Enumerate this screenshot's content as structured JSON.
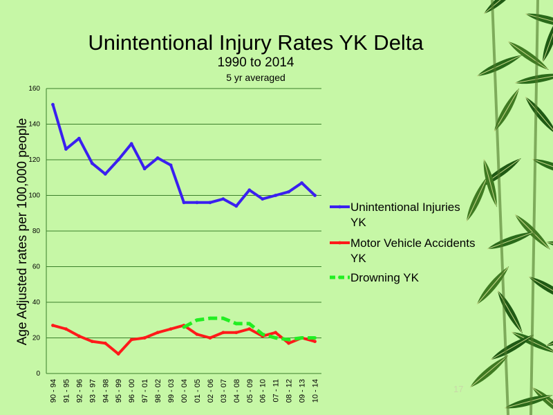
{
  "slide": {
    "title": "Unintentional Injury Rates YK Delta",
    "subtitle": "1990 to 2014",
    "note": "5 yr averaged",
    "page_number": "17",
    "background_color": "#c6f7a6"
  },
  "chart_data": {
    "type": "line",
    "title": "Unintentional Injury Rates YK Delta",
    "xlabel": "",
    "ylabel": "Age Adjusted rates per 100,000 people",
    "ylim": [
      0,
      160
    ],
    "yticks": [
      0,
      20,
      40,
      60,
      80,
      100,
      120,
      140,
      160
    ],
    "grid": true,
    "legend_position": "right",
    "categories": [
      "90 - 94",
      "91 - 95",
      "92 - 96",
      "93 - 97",
      "94 - 98",
      "95 - 99",
      "96 - 00",
      "97 - 01",
      "98 - 02",
      "99 - 03",
      "00 - 04",
      "01 - 05",
      "02 - 06",
      "03 - 07",
      "04 - 08",
      "05 - 09",
      "06 - 10",
      "07 - 11",
      "08 - 12",
      "09 - 13",
      "10 - 14"
    ],
    "series": [
      {
        "name": "Unintentional Injuries YK",
        "legend_lines": [
          "Unintentional Injuries",
          "YK"
        ],
        "color": "#3a1ff0",
        "dashed": false,
        "values": [
          151,
          126,
          132,
          118,
          112,
          120,
          129,
          115,
          121,
          117,
          96,
          96,
          96,
          98,
          94,
          103,
          98,
          100,
          102,
          107,
          100
        ]
      },
      {
        "name": "Motor Vehicle Accidents YK",
        "legend_lines": [
          "Motor Vehicle Accidents",
          "YK"
        ],
        "color": "#ff1a1a",
        "dashed": false,
        "values": [
          27,
          25,
          21,
          18,
          17,
          11,
          19,
          20,
          23,
          25,
          27,
          22,
          20,
          23,
          23,
          25,
          21,
          23,
          17,
          20,
          18
        ]
      },
      {
        "name": "Drowning YK",
        "legend_lines": [
          "Drowning YK"
        ],
        "color": "#22ee22",
        "dashed": true,
        "values": [
          null,
          null,
          null,
          null,
          null,
          null,
          null,
          null,
          null,
          null,
          26,
          30,
          31,
          31,
          28,
          28,
          22,
          20,
          19,
          20,
          20
        ]
      }
    ]
  }
}
